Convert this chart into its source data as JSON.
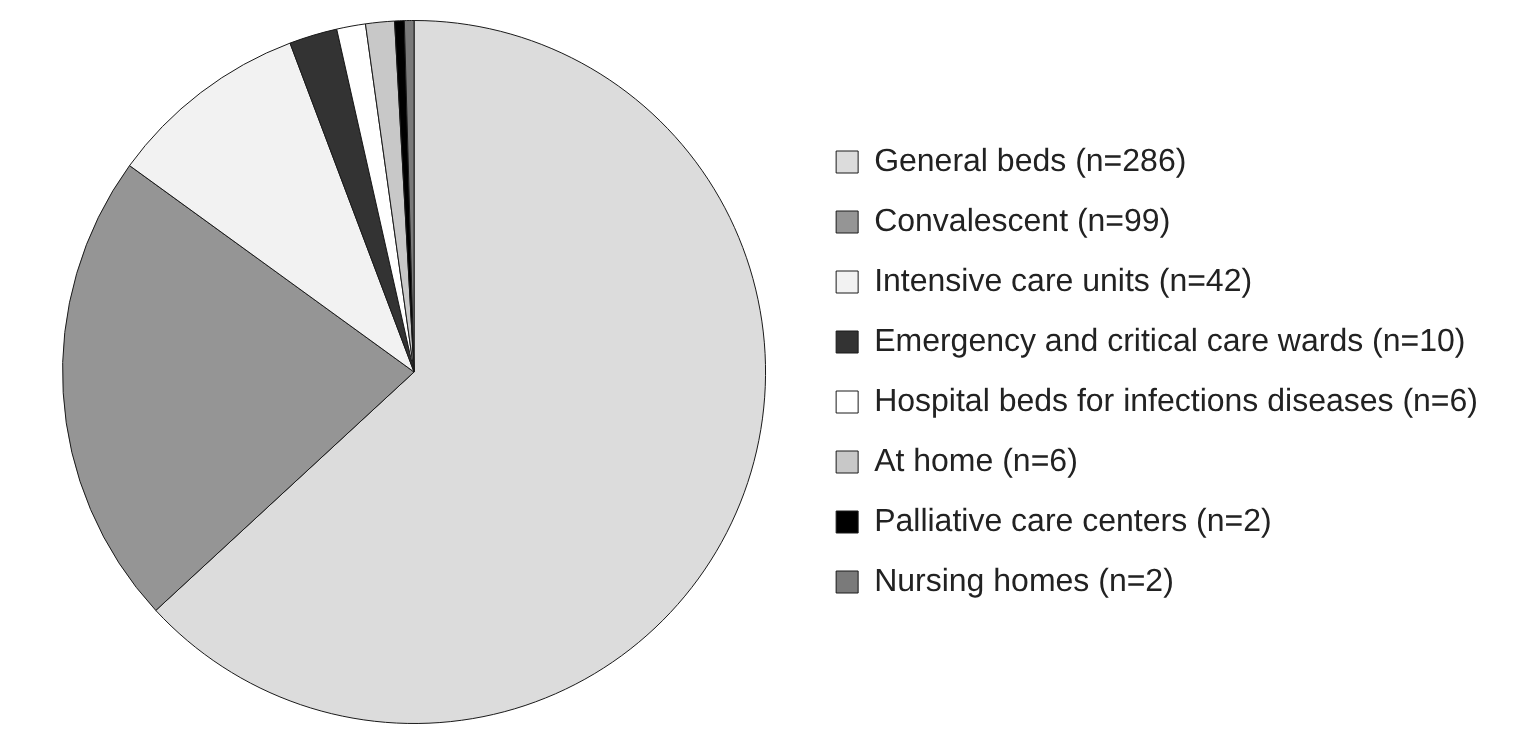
{
  "chart_data": {
    "type": "pie",
    "categories": [
      "General beds (n=286)",
      "Convalescent (n=99)",
      "Intensive care units (n=42)",
      "Emergency and critical care wards (n=10)",
      "Hospital beds for infections diseases (n=6)",
      "At home (n=6)",
      "Palliative care centers (n=2)",
      "Nursing homes (n=2)"
    ],
    "values": [
      286,
      99,
      42,
      10,
      6,
      6,
      2,
      2
    ],
    "colors": [
      "#dcdcdc",
      "#959595",
      "#f2f2f2",
      "#333333",
      "#ffffff",
      "#c8c8c8",
      "#000000",
      "#7a7a7a"
    ],
    "legend": "right"
  }
}
